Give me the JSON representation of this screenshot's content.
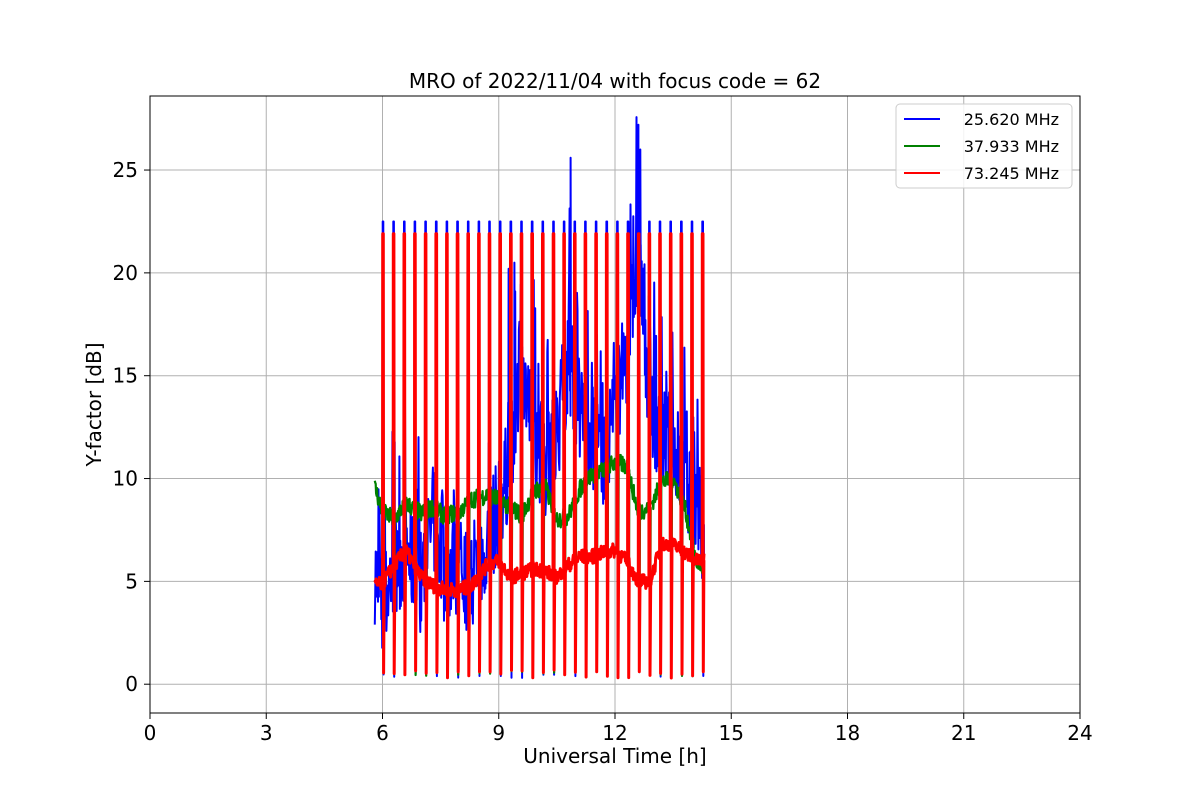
{
  "chart_data": {
    "type": "line",
    "title": "MRO of 2022/11/04 with focus code = 62",
    "xlabel": "Universal Time [h]",
    "ylabel": "Y-factor [dB]",
    "xlim": [
      0,
      24
    ],
    "ylim": [
      -1.4,
      28.6
    ],
    "x_ticks": [
      0,
      3,
      6,
      9,
      12,
      15,
      18,
      21,
      24
    ],
    "y_ticks": [
      0,
      5,
      10,
      15,
      20,
      25
    ],
    "grid": true,
    "legend_position": "top-right",
    "cal_pulses": {
      "start": 6.0,
      "step": 0.275,
      "end": 14.25,
      "peak": {
        "25.620 MHz": 22.5,
        "37.933 MHz": 21.9,
        "73.245 MHz": 21.9
      },
      "low": {
        "25.620 MHz": 0.3,
        "37.933 MHz": 0.3,
        "73.245 MHz": 0.3
      }
    },
    "series": [
      {
        "name": "25.620 MHz",
        "color": "#0000ff",
        "x": [
          5.8,
          6.0,
          6.3,
          6.6,
          7.0,
          7.3,
          7.6,
          8.0,
          8.3,
          8.7,
          9.0,
          9.3,
          9.6,
          9.9,
          10.2,
          10.5,
          10.8,
          11.1,
          11.4,
          11.7,
          12.0,
          12.3,
          12.6,
          12.9,
          13.2,
          13.5,
          13.8,
          14.1,
          14.3
        ],
        "values": [
          5.5,
          3.5,
          6.0,
          6.5,
          5.0,
          8.0,
          5.5,
          6.0,
          4.5,
          7.0,
          8.5,
          11.0,
          15.5,
          12.0,
          10.5,
          12.0,
          16.0,
          13.0,
          12.0,
          11.0,
          13.5,
          16.0,
          21.0,
          14.0,
          12.0,
          11.5,
          10.0,
          8.5,
          7.5
        ],
        "spikes": [
          {
            "x": 10.85,
            "y": 25.6
          },
          {
            "x": 12.6,
            "y": 27.2
          },
          {
            "x": 12.65,
            "y": 26.0
          },
          {
            "x": 9.25,
            "y": 20.2
          },
          {
            "x": 9.4,
            "y": 20.5
          }
        ]
      },
      {
        "name": "37.933 MHz",
        "color": "#008000",
        "x": [
          5.8,
          6.0,
          6.3,
          6.6,
          7.0,
          7.3,
          7.6,
          8.0,
          8.3,
          8.7,
          9.0,
          9.3,
          9.6,
          9.9,
          10.2,
          10.5,
          10.8,
          11.1,
          11.4,
          11.7,
          12.0,
          12.3,
          12.6,
          12.9,
          13.2,
          13.5,
          13.8,
          14.1,
          14.3
        ],
        "values": [
          9.6,
          8.4,
          8.0,
          8.8,
          8.3,
          8.6,
          8.2,
          8.4,
          9.0,
          9.2,
          9.0,
          8.6,
          8.2,
          9.4,
          9.6,
          8.0,
          8.2,
          9.5,
          10.2,
          10.4,
          10.8,
          10.6,
          8.4,
          8.6,
          9.8,
          10.0,
          8.6,
          6.0,
          5.6
        ]
      },
      {
        "name": "73.245 MHz",
        "color": "#ff0000",
        "x": [
          5.8,
          6.0,
          6.3,
          6.6,
          7.0,
          7.3,
          7.6,
          8.0,
          8.3,
          8.7,
          9.0,
          9.3,
          9.6,
          9.9,
          10.2,
          10.5,
          10.8,
          11.1,
          11.4,
          11.7,
          12.0,
          12.3,
          12.6,
          12.9,
          13.2,
          13.5,
          13.8,
          14.1,
          14.3
        ],
        "values": [
          4.8,
          4.9,
          5.8,
          6.5,
          5.2,
          4.8,
          4.6,
          4.6,
          4.8,
          5.8,
          6.0,
          5.2,
          5.4,
          5.6,
          5.5,
          5.2,
          5.8,
          6.2,
          6.2,
          6.4,
          6.5,
          6.0,
          5.0,
          5.0,
          6.8,
          6.8,
          6.4,
          6.0,
          6.0
        ]
      }
    ]
  }
}
